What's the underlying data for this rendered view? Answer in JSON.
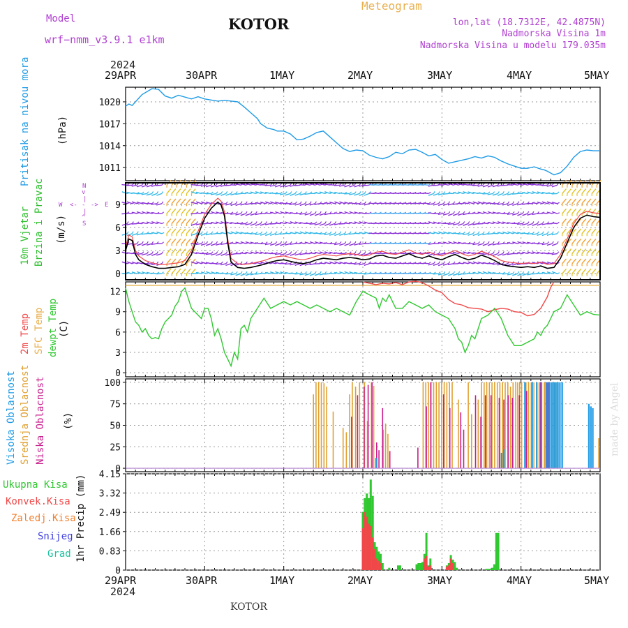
{
  "header": {
    "model_label": "Model",
    "model_name": "wrf−nmm_v3.9.1  e1km",
    "station": "KOTOR",
    "product": "Meteogram",
    "lonlat": "lon,lat (18.7312E, 42.4875N)",
    "elevation": "Nadmorska Visina 1m",
    "model_elevation": "Nadmorska Visina u modelu 179.035m",
    "year_top": "2024",
    "year_bottom": "2024",
    "footer_station": "KOTOR",
    "credit": "made by Angel"
  },
  "dates": [
    "29APR",
    "30APR",
    "1MAY",
    "2MAY",
    "3MAY",
    "4MAY",
    "5MAY"
  ],
  "colors": {
    "pressure": "#1e9be6",
    "temp2m": "#f04848",
    "sfc": "#e8b050",
    "dewpt": "#30c830",
    "high_cloud": "#1e9be6",
    "mid_cloud": "#e0a030",
    "low_cloud": "#c81e8c",
    "total_precip": "#30c830",
    "convective": "#f04848",
    "frozen": "#f08030",
    "snow": "#4040e0",
    "hail": "#20c0a0",
    "wind_label": "#30c030",
    "rose": "#b040d0"
  },
  "legends": {
    "pressure": "Pritisak na nivou mora",
    "pressure_unit": "(hPa)",
    "wind_a": "10m Vjetar",
    "wind_b": "Brzina i Pravac",
    "wind_unit": "(m/s)",
    "wind_rose": {
      "n": "N",
      "s": "S",
      "e": "E",
      "w": "W"
    },
    "temp_2m": "2m Temp",
    "temp_sfc": "SFC Temp",
    "temp_dew": "dewpt Temp",
    "temp_unit": "(C)",
    "cloud_high": "Visoka Oblacnost",
    "cloud_mid": "Srednja Oblacnost",
    "cloud_low": "Niska Oblacnost",
    "cloud_unit": "(%)",
    "precip_total": "Ukupna Kisa",
    "precip_conv": "Konvek.Kisa",
    "precip_frozen": "Zaledj.Kisa",
    "precip_snow": "Snijeg",
    "precip_hail": "Grad",
    "precip_unit": "1hr Precip (mm)"
  },
  "chart_data": [
    {
      "type": "line",
      "name": "pressure",
      "x_unit": "hours from 29APR 00UTC",
      "xlim": [
        0,
        144
      ],
      "yticks": [
        1011,
        1014,
        1017,
        1020
      ],
      "ylim": [
        1009.2,
        1022.0
      ],
      "x": [
        0,
        1,
        2,
        3,
        5,
        8,
        10,
        12,
        14,
        16,
        20,
        22,
        24,
        28,
        30,
        34,
        36,
        38,
        40,
        41,
        43,
        45,
        46,
        48,
        50,
        52,
        54,
        56,
        58,
        60,
        62,
        64,
        66,
        68,
        70,
        72,
        74,
        76,
        78,
        80,
        82,
        84,
        86,
        88,
        90,
        92,
        94,
        96,
        98,
        100,
        102,
        104,
        106,
        108,
        110,
        112,
        114,
        116,
        118,
        120,
        122,
        124,
        126,
        127,
        128,
        130,
        132,
        134,
        136,
        138,
        140,
        142,
        144
      ],
      "y": [
        1019.4,
        1019.7,
        1019.5,
        1020.0,
        1021.0,
        1021.8,
        1021.7,
        1020.8,
        1020.5,
        1020.9,
        1020.4,
        1020.7,
        1020.4,
        1020.1,
        1020.2,
        1020.0,
        1019.3,
        1018.5,
        1017.7,
        1017.0,
        1016.4,
        1016.2,
        1016.0,
        1016.0,
        1015.6,
        1014.8,
        1014.9,
        1015.3,
        1015.8,
        1016.0,
        1015.2,
        1014.4,
        1013.6,
        1013.2,
        1013.4,
        1013.3,
        1012.7,
        1012.4,
        1012.2,
        1012.5,
        1013.1,
        1012.9,
        1013.4,
        1013.5,
        1013.1,
        1012.6,
        1012.8,
        1012.1,
        1011.6,
        1011.8,
        1012.0,
        1012.2,
        1012.5,
        1012.3,
        1012.6,
        1012.4,
        1011.9,
        1011.5,
        1011.2,
        1010.9,
        1010.9,
        1011.1,
        1010.8,
        1010.7,
        1010.5,
        1010.0,
        1010.3,
        1011.2,
        1012.4,
        1013.2,
        1013.4,
        1013.3,
        1013.3
      ]
    },
    {
      "type": "line",
      "name": "wind speed",
      "x_unit": "hours from 29APR 00UTC",
      "xlim": [
        0,
        144
      ],
      "yticks": [
        0,
        3,
        6,
        9
      ],
      "ylim": [
        -0.8,
        11.8
      ],
      "x": [
        0,
        1,
        2,
        3,
        4,
        5,
        6,
        8,
        10,
        12,
        14,
        16,
        18,
        20,
        22,
        24,
        26,
        28,
        29,
        30,
        31,
        32,
        34,
        36,
        38,
        40,
        42,
        44,
        46,
        48,
        50,
        52,
        54,
        56,
        58,
        60,
        62,
        64,
        66,
        68,
        70,
        72,
        74,
        76,
        78,
        80,
        82,
        84,
        86,
        88,
        90,
        92,
        94,
        96,
        98,
        100,
        102,
        104,
        106,
        108,
        110,
        112,
        114,
        116,
        118,
        120,
        122,
        124,
        126,
        128,
        130,
        132,
        134,
        136,
        138,
        140,
        142,
        144
      ],
      "y": [
        3.0,
        4.5,
        4.3,
        2.5,
        1.8,
        1.5,
        1.2,
        0.9,
        0.7,
        0.7,
        0.8,
        0.9,
        1.2,
        2.5,
        5.0,
        7.2,
        8.5,
        9.3,
        8.9,
        7.5,
        4.0,
        1.5,
        0.8,
        0.7,
        0.8,
        1.0,
        1.2,
        1.5,
        1.7,
        1.8,
        1.6,
        1.4,
        1.3,
        1.5,
        1.8,
        2.0,
        1.9,
        1.8,
        2.0,
        2.1,
        2.0,
        1.8,
        1.9,
        2.3,
        2.4,
        2.1,
        2.0,
        2.3,
        2.6,
        2.2,
        2.0,
        2.3,
        2.0,
        1.8,
        2.2,
        2.5,
        2.1,
        1.8,
        2.0,
        2.4,
        2.1,
        1.7,
        1.2,
        1.0,
        0.9,
        0.8,
        0.9,
        0.8,
        1.0,
        0.7,
        0.8,
        2.0,
        4.0,
        6.0,
        7.2,
        7.6,
        7.4,
        7.3
      ]
    },
    {
      "type": "line",
      "name": "temperature",
      "x_unit": "hours from 29APR 00UTC",
      "xlim": [
        0,
        144
      ],
      "yticks": [
        0,
        3,
        6,
        9,
        12
      ],
      "ylim": [
        -0.6,
        13.4
      ],
      "series": [
        {
          "name": "SFC Temp",
          "x": [
            0,
            144
          ],
          "y": [
            12.9,
            12.9
          ]
        },
        {
          "name": "2m Temp",
          "x": [
            72,
            74,
            76,
            78,
            80,
            82,
            84,
            86,
            88,
            90,
            92,
            94,
            96,
            98,
            100,
            102,
            104,
            106,
            108,
            110,
            112,
            114,
            116,
            118,
            120,
            122,
            124,
            126,
            128,
            129,
            130
          ],
          "y": [
            13.4,
            13.2,
            13.0,
            13.2,
            13.1,
            13.3,
            13.0,
            13.4,
            13.5,
            13.3,
            12.8,
            12.2,
            11.8,
            10.8,
            10.2,
            10.0,
            9.6,
            9.5,
            9.4,
            9.0,
            9.3,
            9.5,
            9.4,
            9.0,
            8.9,
            8.4,
            8.6,
            9.5,
            11.2,
            12.6,
            13.4
          ]
        },
        {
          "name": "dewpt Temp",
          "x": [
            0,
            1,
            2,
            3,
            4,
            5,
            6,
            7,
            8,
            9,
            10,
            11,
            12,
            13,
            14,
            15,
            16,
            17,
            18,
            19,
            20,
            21,
            22,
            23,
            24,
            25,
            26,
            27,
            28,
            29,
            30,
            31,
            32,
            33,
            34,
            35,
            36,
            37,
            38,
            40,
            42,
            44,
            46,
            48,
            50,
            52,
            54,
            56,
            58,
            60,
            62,
            64,
            66,
            68,
            70,
            72,
            74,
            76,
            77,
            78,
            79,
            80,
            82,
            84,
            86,
            88,
            90,
            92,
            94,
            96,
            98,
            100,
            101,
            102,
            103,
            104,
            105,
            106,
            107,
            108,
            110,
            112,
            114,
            116,
            118,
            120,
            122,
            124,
            125,
            126,
            127,
            128,
            129,
            130,
            132,
            134,
            136,
            138,
            140,
            142,
            144
          ],
          "y": [
            12.5,
            10.5,
            9.0,
            7.5,
            7.0,
            6.0,
            6.5,
            5.5,
            5.0,
            5.2,
            5.0,
            6.5,
            7.5,
            8.0,
            8.5,
            9.8,
            10.5,
            12.0,
            12.5,
            11.0,
            9.5,
            9.0,
            8.5,
            8.0,
            9.5,
            9.5,
            8.0,
            5.5,
            6.5,
            5.0,
            3.0,
            2.0,
            1.0,
            3.0,
            2.0,
            6.5,
            7.0,
            6.0,
            8.0,
            9.5,
            11.0,
            9.5,
            10.0,
            10.5,
            10.0,
            10.5,
            10.0,
            9.5,
            10.0,
            9.5,
            9.0,
            9.5,
            9.0,
            8.5,
            10.5,
            12.0,
            11.5,
            11.0,
            9.5,
            11.0,
            10.5,
            11.5,
            9.5,
            9.5,
            10.5,
            10.0,
            9.5,
            10.0,
            9.0,
            8.5,
            8.0,
            6.5,
            5.0,
            4.5,
            3.0,
            4.0,
            5.5,
            5.0,
            6.5,
            8.0,
            8.5,
            9.5,
            8.0,
            5.5,
            4.0,
            4.0,
            4.5,
            5.0,
            6.0,
            5.5,
            6.5,
            7.0,
            8.0,
            9.0,
            9.5,
            11.5,
            10.0,
            8.5,
            9.0,
            8.6,
            8.5
          ]
        }
      ]
    },
    {
      "type": "bar",
      "name": "cloud cover",
      "x_unit": "hours from 29APR 00UTC",
      "xlim": [
        0,
        144
      ],
      "yticks": [
        0,
        25,
        50,
        75,
        100
      ],
      "ylim": [
        -4,
        104
      ],
      "series": [
        {
          "name": "Srednja Oblacnost",
          "x": [
            57,
            57.8,
            58.6,
            59.4,
            60.2,
            61,
            63,
            66,
            67,
            68,
            68.8,
            69.8,
            71,
            72.5,
            73.4,
            74.6,
            75.3,
            78.2,
            78.9,
            79.6,
            90.3,
            91.1,
            91.9,
            92.7,
            93.5,
            94.3,
            95.1,
            95.9,
            96.7,
            97.5,
            98.3,
            99.1,
            101,
            104,
            105,
            107,
            108,
            108.8,
            109.6,
            110.4,
            111.2,
            112,
            112.8,
            113.6,
            114.4,
            115.2,
            116,
            116.8,
            117.6,
            118.4,
            119,
            119.6,
            120.2,
            121.5,
            122.3,
            123.1,
            123.9,
            124.7,
            125.5,
            126.3,
            127.1,
            127.9,
            128.7,
            129.5,
            130.2,
            131,
            131.8,
            132.4,
            143.6
          ],
          "y": [
            86,
            100,
            100,
            100,
            99,
            95,
            66,
            47,
            42,
            86,
            100,
            95,
            100,
            100,
            55,
            100,
            96,
            45,
            52,
            40,
            100,
            100,
            100,
            100,
            100,
            100,
            100,
            100,
            100,
            100,
            100,
            100,
            80,
            100,
            63,
            80,
            100,
            100,
            100,
            100,
            100,
            100,
            100,
            100,
            100,
            100,
            100,
            95,
            100,
            100,
            100,
            100,
            100,
            100,
            100,
            100,
            100,
            100,
            100,
            100,
            100,
            100,
            100,
            100,
            100,
            100,
            100,
            100,
            35
          ]
        },
        {
          "name": "Niska Oblacnost",
          "x": [
            68.6,
            70.4,
            72.4,
            73.6,
            74.8,
            76.2,
            76.9,
            78.0,
            80.2,
            88.7,
            91.3,
            92.6,
            96.5,
            98.4,
            101.7,
            102.6,
            106.2,
            107.8,
            109.2,
            110.9,
            113.4,
            114.8,
            116.1,
            117.4,
            119.5,
            121.7,
            125.9,
            127.9,
            128.6
          ],
          "y": [
            60,
            85,
            95,
            97,
            100,
            30,
            21,
            70,
            20,
            24,
            72,
            100,
            86,
            70,
            65,
            45,
            85,
            60,
            85,
            85,
            82,
            80,
            85,
            82,
            85,
            90,
            100,
            100,
            100
          ]
        },
        {
          "name": "Visoka Oblacnost",
          "x": [
            76,
            114.1,
            114.8,
            121.2,
            123.4,
            124.8,
            126.2,
            127.6,
            128.2,
            128.8,
            129.4,
            130,
            130.6,
            131.2,
            131.8,
            132.5,
            140.6,
            141.2,
            141.8,
            143.8
          ],
          "y": [
            12,
            18,
            22,
            100,
            100,
            100,
            100,
            100,
            100,
            100,
            100,
            100,
            100,
            100,
            100,
            100,
            75,
            72,
            70,
            0
          ]
        }
      ]
    },
    {
      "type": "bar",
      "name": "1hr precipitation",
      "x_unit": "hours from 29APR 00UTC",
      "xlim": [
        0,
        144
      ],
      "yticks": [
        0,
        0.83,
        1.66,
        2.49,
        3.32,
        4.15
      ],
      "ylim": [
        0,
        4.15
      ],
      "series": [
        {
          "name": "Ukupna Kisa",
          "x": [
            72,
            72.6,
            73.2,
            73.8,
            74.4,
            75,
            75.6,
            76.2,
            76.8,
            77.4,
            78,
            80,
            82.7,
            83.3,
            88.3,
            88.9,
            89.5,
            90.1,
            90.7,
            91.3,
            91.9,
            92.5,
            97.5,
            98.1,
            98.7,
            99.3,
            99.9,
            100.5,
            109.5,
            110.1,
            110.7,
            111.3,
            111.9,
            112.5,
            113.1
          ],
          "y": [
            2.5,
            3.1,
            3.3,
            3.1,
            3.9,
            3.2,
            1.2,
            1.0,
            0.8,
            0.7,
            0.3,
            0.1,
            0.2,
            0.2,
            0.25,
            0.3,
            0.3,
            0.35,
            0.7,
            1.6,
            0.2,
            0.5,
            0.2,
            0.3,
            0.65,
            0.45,
            0.35,
            0.1,
            0.05,
            0.05,
            0.05,
            0.1,
            0.25,
            1.6,
            1.6
          ]
        },
        {
          "name": "Konvek.Kisa",
          "x": [
            72,
            72.6,
            73.2,
            73.8,
            74.4,
            75,
            75.6,
            76.2,
            76.8,
            77.4,
            90.7,
            91.3,
            91.9,
            92.5,
            97.5,
            98.1,
            98.7,
            99.3
          ],
          "y": [
            1.8,
            2.5,
            2.3,
            2.0,
            1.9,
            1.4,
            0.9,
            0.5,
            0.4,
            0.3,
            0.5,
            0.6,
            0.15,
            0.2,
            0.15,
            0.2,
            0.5,
            0.3
          ]
        }
      ]
    }
  ]
}
